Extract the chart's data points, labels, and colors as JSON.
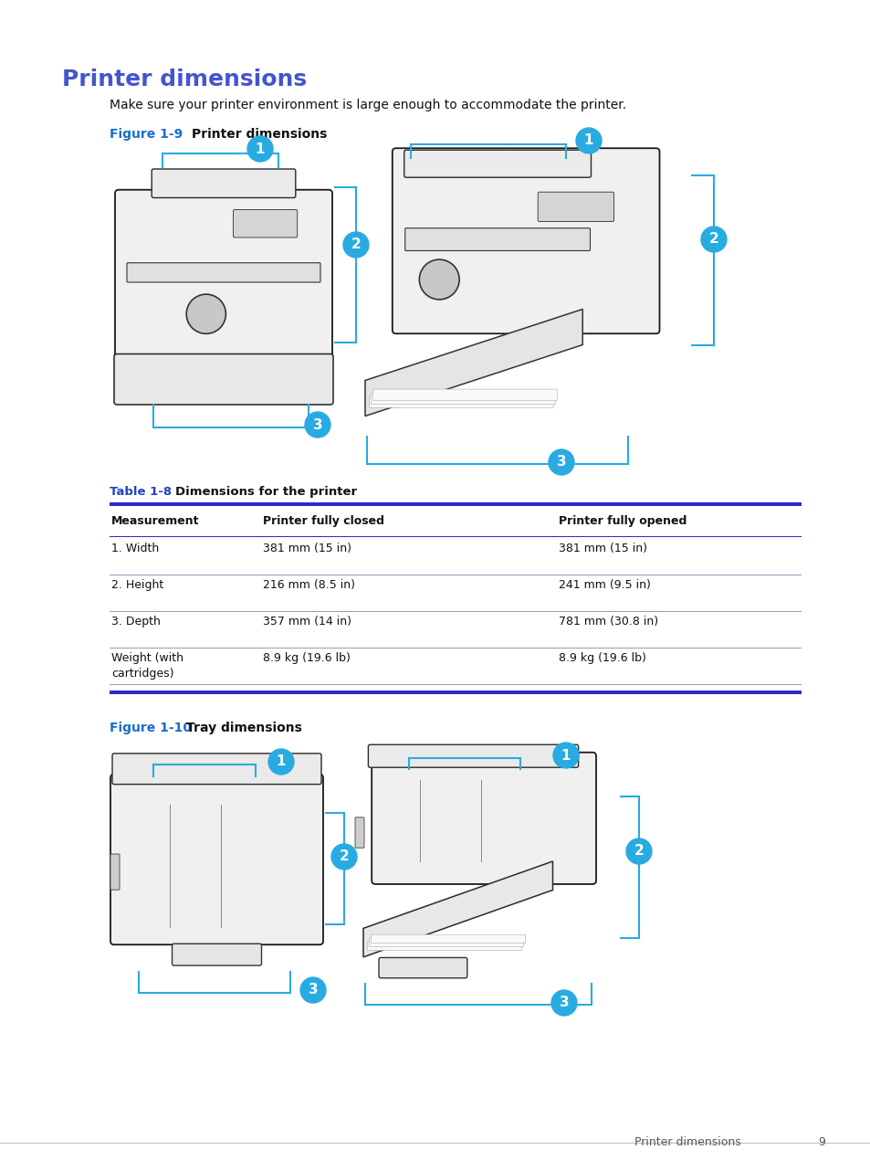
{
  "page_title": "Printer dimensions",
  "subtitle": "Make sure your printer environment is large enough to accommodate the printer.",
  "figure1_label": "Figure 1-9",
  "figure1_title": "Printer dimensions",
  "figure2_label": "Figure 1-10",
  "figure2_title": "Tray dimensions",
  "table_label": "Table 1-8",
  "table_title": "Dimensions for the printer",
  "table_headers": [
    "Measurement",
    "Printer fully closed",
    "Printer fully opened"
  ],
  "table_rows": [
    [
      "1. Width",
      "381 mm (15 in)",
      "381 mm (15 in)"
    ],
    [
      "2. Height",
      "216 mm (8.5 in)",
      "241 mm (9.5 in)"
    ],
    [
      "3. Depth",
      "357 mm (14 in)",
      "781 mm (30.8 in)"
    ],
    [
      "Weight (with\ncartridges)",
      "8.9 kg (19.6 lb)",
      "8.9 kg (19.6 lb)"
    ]
  ],
  "cyan_color": "#29ABE2",
  "header_blue": "#2B2BCC",
  "footer_text": "Printer dimensions",
  "footer_page": "9",
  "background_color": "#FFFFFF",
  "title_color": "#4455CC",
  "figure_label_color": "#1A6ECC",
  "table_label_color": "#2244BB"
}
